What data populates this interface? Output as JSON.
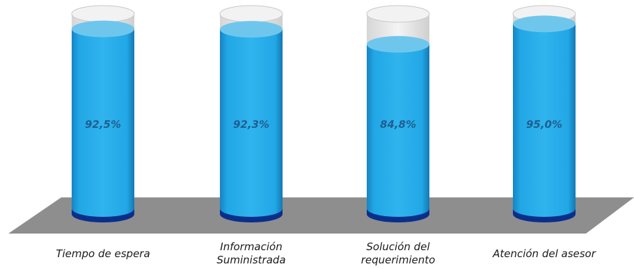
{
  "chart_data": {
    "type": "bar",
    "style": "3d-cylinder",
    "categories": [
      "Tiempo de espera",
      "Información\nSuministrada",
      "Solución del\nrequerimiento",
      "Atención del asesor"
    ],
    "values": [
      92.5,
      92.3,
      84.8,
      95.0
    ],
    "value_labels": [
      "92,5%",
      "92,3%",
      "84,8%",
      "95,0%"
    ],
    "ylim": [
      0,
      100
    ],
    "grid": false,
    "legend": "none",
    "colors": {
      "fill": "#22a7e6",
      "fill_top": "#6fc6ec",
      "base": "#0a2f8a",
      "empty_glass": "#e6e6e6",
      "floor": "#8e8e8e",
      "value_label": "#1f5f8f"
    }
  }
}
